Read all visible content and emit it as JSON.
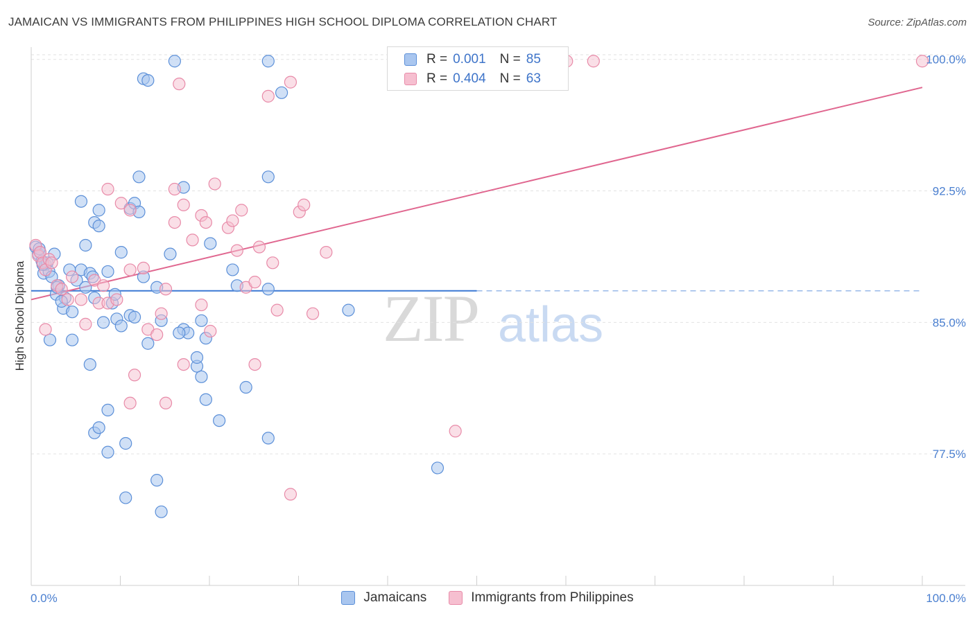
{
  "header": {
    "title": "JAMAICAN VS IMMIGRANTS FROM PHILIPPINES HIGH SCHOOL DIPLOMA CORRELATION CHART",
    "source": "Source: ZipAtlas.com"
  },
  "watermark": {
    "part1": "ZIP",
    "part2": "atlas"
  },
  "legend": {
    "rows": [
      {
        "r_label": "R =",
        "r_value": "0.001",
        "n_label": "N =",
        "n_value": "85"
      },
      {
        "r_label": "R =",
        "r_value": "0.404",
        "n_label": "N =",
        "n_value": "63"
      }
    ]
  },
  "bottom_legend": {
    "series1": "Jamaicans",
    "series2": "Immigrants from Philippines"
  },
  "colors": {
    "blue_fill": "#a9c6ef",
    "blue_stroke": "#5b8fd8",
    "blue_line": "#3a78d4",
    "pink_fill": "#f6bfd0",
    "pink_stroke": "#e88aa8",
    "pink_line": "#e0668f",
    "grid": "#e2e2e2",
    "axis_text": "#4a7fd0"
  },
  "chart_data": {
    "type": "scatter",
    "title": "JAMAICAN VS IMMIGRANTS FROM PHILIPPINES HIGH SCHOOL DIPLOMA CORRELATION CHART",
    "xlabel": "",
    "ylabel": "High School Diploma",
    "xlim": [
      0,
      100
    ],
    "ylim": [
      70.0,
      100.7
    ],
    "x_tick_labels": [
      "0.0%",
      "100.0%"
    ],
    "y_ticks": [
      77.5,
      85.0,
      92.5,
      100.0
    ],
    "y_tick_labels": [
      "77.5%",
      "85.0%",
      "92.5%",
      "100.0%"
    ],
    "grid": true,
    "legend_position": "top-center",
    "series": [
      {
        "name": "Jamaicans",
        "r": 0.001,
        "n": 85,
        "trend": {
          "x": [
            0,
            50
          ],
          "y": [
            86.8,
            86.8
          ],
          "dashed_to": 100
        },
        "points": [
          [
            0.5,
            89.3
          ],
          [
            0.8,
            88.9
          ],
          [
            1.0,
            89.0
          ],
          [
            1.2,
            88.5
          ],
          [
            1.4,
            87.8
          ],
          [
            1.6,
            88.3
          ],
          [
            1.8,
            88.4
          ],
          [
            2.0,
            87.9
          ],
          [
            2.3,
            87.6
          ],
          [
            2.6,
            88.9
          ],
          [
            2.8,
            86.6
          ],
          [
            3.1,
            87.1
          ],
          [
            3.6,
            85.8
          ],
          [
            3.8,
            86.4
          ],
          [
            4.3,
            88.0
          ],
          [
            4.6,
            85.6
          ],
          [
            5.1,
            87.4
          ],
          [
            5.6,
            88.0
          ],
          [
            6.1,
            87.0
          ],
          [
            6.6,
            87.8
          ],
          [
            7.1,
            86.4
          ],
          [
            8.1,
            85.0
          ],
          [
            8.6,
            87.9
          ],
          [
            9.1,
            86.1
          ],
          [
            9.6,
            85.2
          ],
          [
            10.1,
            84.8
          ],
          [
            11.1,
            85.4
          ],
          [
            11.6,
            85.3
          ],
          [
            12.6,
            87.6
          ],
          [
            13.1,
            83.8
          ],
          [
            14.1,
            87.0
          ],
          [
            14.6,
            85.1
          ],
          [
            17.1,
            84.6
          ],
          [
            17.6,
            84.4
          ],
          [
            19.1,
            85.1
          ],
          [
            19.6,
            84.1
          ],
          [
            22.6,
            88.0
          ],
          [
            23.1,
            87.1
          ],
          [
            26.6,
            86.9
          ],
          [
            35.6,
            85.7
          ],
          [
            2.1,
            84.0
          ],
          [
            4.6,
            84.0
          ],
          [
            6.6,
            82.6
          ],
          [
            7.1,
            78.7
          ],
          [
            7.6,
            79.0
          ],
          [
            8.6,
            80.0
          ],
          [
            8.6,
            77.6
          ],
          [
            10.6,
            78.1
          ],
          [
            10.6,
            75.0
          ],
          [
            14.1,
            76.0
          ],
          [
            14.6,
            74.2
          ],
          [
            18.6,
            82.5
          ],
          [
            18.6,
            83.0
          ],
          [
            19.1,
            81.9
          ],
          [
            19.6,
            80.6
          ],
          [
            21.1,
            79.4
          ],
          [
            24.1,
            81.3
          ],
          [
            26.6,
            78.4
          ],
          [
            45.6,
            76.7
          ],
          [
            5.6,
            91.9
          ],
          [
            6.1,
            89.4
          ],
          [
            7.1,
            90.7
          ],
          [
            7.6,
            90.5
          ],
          [
            7.6,
            91.4
          ],
          [
            10.1,
            89.0
          ],
          [
            11.1,
            91.5
          ],
          [
            11.6,
            91.8
          ],
          [
            12.1,
            93.3
          ],
          [
            12.1,
            91.3
          ],
          [
            15.6,
            88.9
          ],
          [
            17.1,
            92.7
          ],
          [
            20.1,
            89.5
          ],
          [
            26.6,
            93.3
          ],
          [
            12.6,
            98.9
          ],
          [
            13.1,
            98.8
          ],
          [
            16.1,
            99.9
          ],
          [
            26.6,
            99.9
          ],
          [
            28.1,
            98.1
          ],
          [
            1.3,
            88.3
          ],
          [
            0.9,
            89.2
          ],
          [
            2.9,
            87.0
          ],
          [
            3.4,
            86.2
          ],
          [
            6.9,
            87.6
          ],
          [
            9.4,
            86.6
          ],
          [
            16.6,
            84.4
          ]
        ]
      },
      {
        "name": "Immigrants from Philippines",
        "r": 0.404,
        "n": 63,
        "trend": {
          "x": [
            0,
            100
          ],
          "y": [
            86.3,
            98.4
          ]
        },
        "points": [
          [
            0.5,
            89.4
          ],
          [
            0.8,
            88.8
          ],
          [
            1.0,
            89.0
          ],
          [
            1.3,
            88.4
          ],
          [
            1.6,
            88.0
          ],
          [
            2.0,
            88.6
          ],
          [
            2.3,
            88.4
          ],
          [
            2.9,
            87.1
          ],
          [
            3.4,
            86.9
          ],
          [
            4.1,
            86.3
          ],
          [
            4.6,
            87.6
          ],
          [
            5.6,
            86.3
          ],
          [
            6.1,
            84.9
          ],
          [
            7.1,
            87.4
          ],
          [
            7.6,
            86.1
          ],
          [
            8.1,
            87.1
          ],
          [
            8.6,
            86.1
          ],
          [
            9.6,
            86.3
          ],
          [
            11.1,
            88.0
          ],
          [
            12.6,
            88.1
          ],
          [
            13.1,
            84.6
          ],
          [
            14.1,
            84.3
          ],
          [
            14.6,
            85.5
          ],
          [
            15.1,
            86.9
          ],
          [
            16.1,
            90.7
          ],
          [
            17.1,
            91.7
          ],
          [
            18.1,
            89.7
          ],
          [
            19.1,
            91.1
          ],
          [
            19.6,
            90.7
          ],
          [
            20.6,
            92.9
          ],
          [
            22.1,
            90.4
          ],
          [
            22.6,
            90.8
          ],
          [
            23.1,
            89.1
          ],
          [
            23.6,
            91.4
          ],
          [
            24.1,
            87.0
          ],
          [
            25.1,
            87.3
          ],
          [
            25.6,
            89.3
          ],
          [
            27.1,
            88.4
          ],
          [
            27.6,
            85.7
          ],
          [
            30.1,
            91.3
          ],
          [
            30.6,
            91.7
          ],
          [
            31.6,
            85.5
          ],
          [
            33.1,
            89.0
          ],
          [
            1.6,
            84.6
          ],
          [
            11.1,
            80.4
          ],
          [
            11.6,
            82.0
          ],
          [
            15.1,
            80.4
          ],
          [
            17.1,
            82.6
          ],
          [
            19.1,
            86.0
          ],
          [
            20.1,
            84.5
          ],
          [
            25.1,
            82.6
          ],
          [
            29.1,
            75.2
          ],
          [
            47.6,
            78.8
          ],
          [
            8.6,
            92.6
          ],
          [
            10.1,
            91.8
          ],
          [
            11.1,
            91.4
          ],
          [
            16.1,
            92.6
          ],
          [
            16.6,
            98.6
          ],
          [
            26.6,
            97.9
          ],
          [
            29.1,
            98.7
          ],
          [
            60.1,
            99.9
          ],
          [
            63.1,
            99.9
          ],
          [
            100.0,
            99.9
          ]
        ]
      }
    ]
  }
}
